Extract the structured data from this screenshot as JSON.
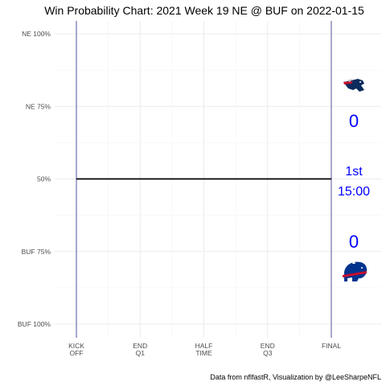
{
  "chart_data": {
    "type": "line",
    "title": "Win Probability Chart: 2021 Week 19 NE @ BUF on 2022-01-15",
    "caption": "Data from nflfastR, Visualization by @LeeSharpeNFL",
    "y_tick_labels": [
      "NE 100%",
      "NE 75%",
      "50%",
      "BUF 75%",
      "BUF 100%"
    ],
    "y_tick_values": [
      0.0,
      0.25,
      0.5,
      0.75,
      1.0
    ],
    "ylim": [
      0,
      1
    ],
    "x_tick_labels": [
      [
        "KICK",
        "OFF"
      ],
      [
        "END",
        "Q1"
      ],
      [
        "HALF",
        "TIME"
      ],
      [
        "END",
        "Q3"
      ],
      [
        "FINAL"
      ]
    ],
    "x_tick_values": [
      0,
      900,
      1800,
      2700,
      3600
    ],
    "xlim": [
      0,
      3600
    ],
    "series": [
      {
        "x": [
          0,
          3600
        ],
        "y": [
          0.5,
          0.5
        ],
        "color": "#000000"
      }
    ],
    "vertical_lines": [
      0,
      3600
    ],
    "vertical_line_color": "#2b2b8a",
    "away_team": {
      "abbr": "NE",
      "score": "0",
      "logo": "patriots-logo-icon"
    },
    "home_team": {
      "abbr": "BUF",
      "score": "0",
      "logo": "bills-logo-icon"
    },
    "game_state": {
      "quarter": "1st",
      "clock": "15:00"
    },
    "text_color": "#0000ff",
    "grid": true
  }
}
